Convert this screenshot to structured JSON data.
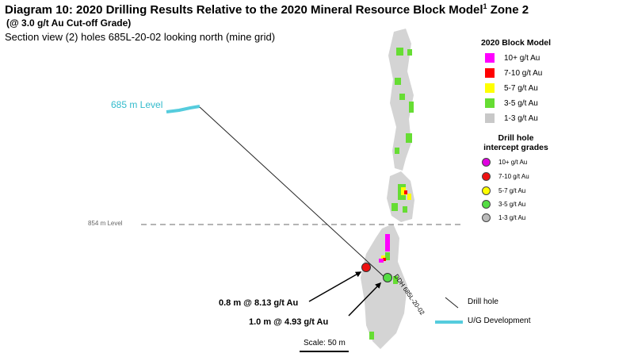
{
  "header": {
    "title_main": "Diagram 10: 2020 Drilling Results Relative to the 2020 Mineral Resource Block Model",
    "title_sup": "1",
    "title_end": " Zone 2",
    "subtitle": "(@ 3.0 g/t Au Cut-off Grade)",
    "section": "Section view (2) holes 685L-20-02 looking north (mine grid)"
  },
  "levels": {
    "upper": "685 m Level",
    "lower": "854 m Level"
  },
  "block_model": {
    "title": "2020 Block Model",
    "items": [
      {
        "label": "10+ g/t Au",
        "color": "#ff00ff"
      },
      {
        "label": "7-10 g/t Au",
        "color": "#ff0000"
      },
      {
        "label": "5-7 g/t Au",
        "color": "#ffff00"
      },
      {
        "label": "3-5 g/t Au",
        "color": "#66dd33"
      },
      {
        "label": "1-3 g/t Au",
        "color": "#c8c8c8"
      }
    ]
  },
  "intercept_legend": {
    "title_line1": "Drill hole",
    "title_line2": "intercept grades",
    "items": [
      {
        "label": "10+ g/t Au",
        "color": "#e000e0"
      },
      {
        "label": "7-10 g/t Au",
        "color": "#ee1111"
      },
      {
        "label": "5-7 g/t Au",
        "color": "#ffff00"
      },
      {
        "label": "3-5 g/t Au",
        "color": "#55dd44"
      },
      {
        "label": "1-3 g/t Au",
        "color": "#bbbbbb"
      }
    ]
  },
  "intercepts": {
    "first": "0.8 m @ 8.13 g/t Au",
    "second": "1.0 m @ 4.93 g/t Au"
  },
  "hole_label": "DDH 685L-20-02",
  "line_legend": {
    "drill_hole": "Drill hole",
    "ug_dev": "U/G Development"
  },
  "scale": "Scale: 50 m",
  "colors": {
    "ug_development": "#55ccdd",
    "level_text": "#33bbcc",
    "zone_grey": "#d4d4d4",
    "grade_green": "#66dd33",
    "grade_yellow": "#ffff00",
    "grade_red": "#ff0000",
    "grade_magenta": "#ff00ff"
  }
}
